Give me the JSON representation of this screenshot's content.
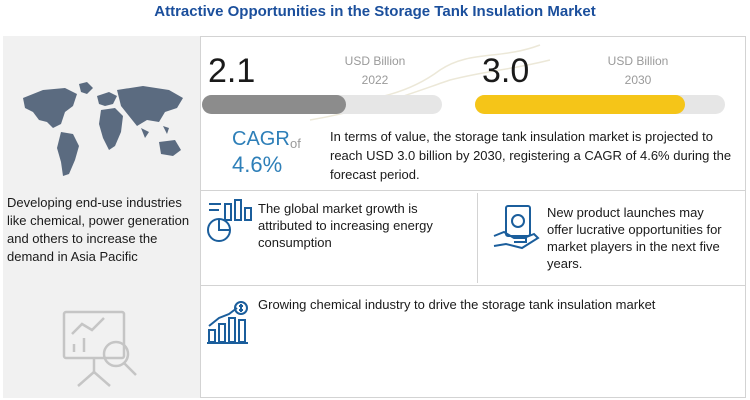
{
  "title": "Attractive Opportunities in the Storage Tank Insulation Market",
  "left_panel": {
    "text": "Developing end-use industries like chemical, power generation and others to increase the demand in Asia Pacific",
    "map_icon": "world-map-icon",
    "analytics_icon": "magnifier-chart-icon"
  },
  "market_2022": {
    "value": "2.1",
    "unit": "USD Billion",
    "year": "2022",
    "bar_fill_fraction": 0.6,
    "bar_color": "#8c8c8c"
  },
  "market_2030": {
    "value": "3.0",
    "unit": "USD Billion",
    "year": "2030",
    "bar_fill_fraction": 0.84,
    "bar_color": "#f5c518"
  },
  "cagr": {
    "label": "CAGR",
    "of": "of",
    "value": "4.6%",
    "description": "In terms of value, the storage tank insulation market is projected to reach USD 3.0 billion by 2030, registering a CAGR of 4.6% during the forecast period."
  },
  "points": [
    {
      "text": "The global market growth is attributed to increasing energy consumption",
      "icon": "energy-chart-icon"
    },
    {
      "text": "New product launches may offer lucrative opportunities for market players in the next five years.",
      "icon": "money-hand-icon"
    },
    {
      "text": "Growing chemical industry to drive the storage tank insulation market",
      "icon": "growth-bars-icon"
    }
  ],
  "colors": {
    "title": "#1b4f9c",
    "accent_blue": "#2e7fb8",
    "accent_yellow": "#f5c518",
    "grey_bar": "#8c8c8c"
  }
}
